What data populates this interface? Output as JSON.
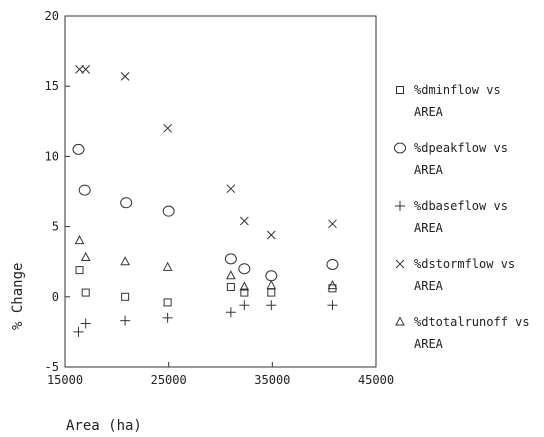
{
  "chart_data": {
    "type": "scatter",
    "title": "",
    "xlabel": "Area (ha)",
    "ylabel": "% Change",
    "xlim": [
      15000,
      45000
    ],
    "ylim": [
      -5,
      20
    ],
    "x_ticks": [
      15000,
      25000,
      35000,
      45000
    ],
    "y_ticks": [
      -5,
      0,
      5,
      10,
      15,
      20
    ],
    "legend_position": "right",
    "grid": false,
    "series": [
      {
        "name": "%dminflow vs AREA",
        "label_lines": [
          "%dminflow vs",
          "AREA"
        ],
        "marker": "square",
        "points": [
          [
            16400,
            1.9
          ],
          [
            17000,
            0.3
          ],
          [
            20800,
            0.0
          ],
          [
            24900,
            -0.4
          ],
          [
            31000,
            0.7
          ],
          [
            32300,
            0.3
          ],
          [
            34900,
            0.3
          ],
          [
            40800,
            0.6
          ]
        ]
      },
      {
        "name": "%dpeakflow vs AREA",
        "label_lines": [
          "%dpeakflow vs",
          "AREA"
        ],
        "marker": "circle",
        "points": [
          [
            16300,
            10.5
          ],
          [
            16900,
            7.6
          ],
          [
            20900,
            6.7
          ],
          [
            25000,
            6.1
          ],
          [
            31000,
            2.7
          ],
          [
            32300,
            2.0
          ],
          [
            34900,
            1.5
          ],
          [
            40800,
            2.3
          ]
        ]
      },
      {
        "name": "%dbaseflow vs AREA",
        "label_lines": [
          "%dbaseflow vs",
          "AREA"
        ],
        "marker": "plus",
        "points": [
          [
            16300,
            -2.5
          ],
          [
            17000,
            -1.9
          ],
          [
            20800,
            -1.7
          ],
          [
            24900,
            -1.5
          ],
          [
            31000,
            -1.1
          ],
          [
            32300,
            -0.6
          ],
          [
            34900,
            -0.6
          ],
          [
            40800,
            -0.6
          ]
        ]
      },
      {
        "name": "%dstormflow vs AREA",
        "label_lines": [
          "%dstormflow vs",
          "AREA"
        ],
        "marker": "x",
        "points": [
          [
            16400,
            16.2
          ],
          [
            17000,
            16.2
          ],
          [
            20800,
            15.7
          ],
          [
            24900,
            12.0
          ],
          [
            31000,
            7.7
          ],
          [
            32300,
            5.4
          ],
          [
            34900,
            4.4
          ],
          [
            40800,
            5.2
          ]
        ]
      },
      {
        "name": "%dtotalrunoff vs AREA",
        "label_lines": [
          "%dtotalrunoff vs",
          "AREA"
        ],
        "marker": "triangle",
        "points": [
          [
            16400,
            4.0
          ],
          [
            17000,
            2.8
          ],
          [
            20800,
            2.5
          ],
          [
            24900,
            2.1
          ],
          [
            31000,
            1.5
          ],
          [
            32300,
            0.7
          ],
          [
            34900,
            0.8
          ],
          [
            40800,
            0.8
          ]
        ]
      }
    ]
  }
}
